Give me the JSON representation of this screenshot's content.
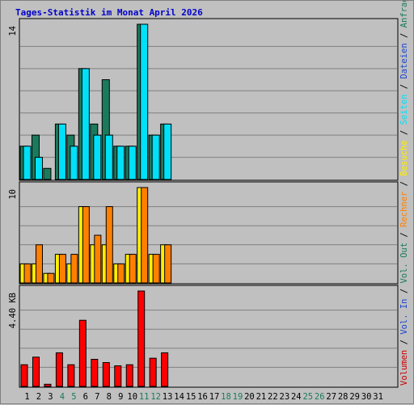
{
  "chart_data": {
    "type": "bar",
    "title": "Tages-Statistik im Monat April 2026",
    "days": [
      "1",
      "2",
      "3",
      "4",
      "5",
      "6",
      "7",
      "8",
      "9",
      "10",
      "11",
      "12",
      "13",
      "14",
      "15",
      "16",
      "17",
      "18",
      "19",
      "20",
      "21",
      "22",
      "23",
      "24",
      "25",
      "26",
      "27",
      "28",
      "29",
      "30",
      "31"
    ],
    "weekend_days": [
      "4",
      "5",
      "11",
      "12",
      "18",
      "19",
      "25",
      "26"
    ],
    "panels": [
      {
        "name": "hits-files-pages",
        "ymax_label": "14",
        "ymax": 14,
        "series": [
          {
            "name": "Anfragen",
            "color": "#1c7a5c",
            "values": [
              3,
              4,
              1,
              5,
              4,
              10,
              5,
              9,
              3,
              3,
              14,
              4,
              5
            ]
          },
          {
            "name": "Dateien",
            "color": "#0b3d91",
            "values": [
              3,
              2,
              0,
              5,
              3,
              10,
              4,
              4,
              3,
              3,
              14,
              4,
              5
            ]
          },
          {
            "name": "Seiten",
            "color": "#00e0f8",
            "values": [
              3,
              2,
              0,
              5,
              3,
              10,
              4,
              4,
              3,
              3,
              14,
              4,
              5
            ]
          }
        ]
      },
      {
        "name": "visits-sites",
        "ymax_label": "10",
        "ymax": 10,
        "series": [
          {
            "name": "Besuche",
            "color": "#ffee00",
            "values": [
              2,
              2,
              1,
              3,
              2,
              8,
              4,
              4,
              2,
              3,
              10,
              3,
              4
            ]
          },
          {
            "name": "Rechner",
            "color": "#ff8000",
            "values": [
              2,
              4,
              1,
              3,
              3,
              8,
              5,
              8,
              2,
              3,
              10,
              3,
              4
            ]
          }
        ]
      },
      {
        "name": "volume",
        "ymax_label": "4.40 KB",
        "ymax": 4.4,
        "series": [
          {
            "name": "Volumen",
            "color": "#ff0000",
            "values": [
              1.0,
              1.35,
              0.1,
              1.55,
              1.0,
              3.05,
              1.25,
              1.1,
              0.95,
              1.0,
              4.4,
              1.3,
              1.55
            ]
          }
        ]
      }
    ],
    "right_legend": [
      {
        "text": "Volumen",
        "color": "#cc0000"
      },
      {
        "text": " / ",
        "color": "#000000"
      },
      {
        "text": "Vol. In",
        "color": "#1a44cc"
      },
      {
        "text": " / ",
        "color": "#000000"
      },
      {
        "text": "Vol. Out",
        "color": "#1c7a5c"
      },
      {
        "text": " / ",
        "color": "#000000"
      },
      {
        "text": "Rechner",
        "color": "#ff8000"
      },
      {
        "text": " / ",
        "color": "#000000"
      },
      {
        "text": "Besuche",
        "color": "#ffee00"
      },
      {
        "text": " / ",
        "color": "#000000"
      },
      {
        "text": "Seiten",
        "color": "#00e0f8"
      },
      {
        "text": " / ",
        "color": "#000000"
      },
      {
        "text": "Dateien",
        "color": "#1a44cc"
      },
      {
        "text": " / ",
        "color": "#000000"
      },
      {
        "text": "Anfragen",
        "color": "#1c7a5c"
      }
    ],
    "colors": {
      "title": "#0000cc",
      "background": "#c0c0c0",
      "gridline": "#808080",
      "weekday_label": "#000000",
      "weekend_label": "#1c7a5c"
    }
  }
}
